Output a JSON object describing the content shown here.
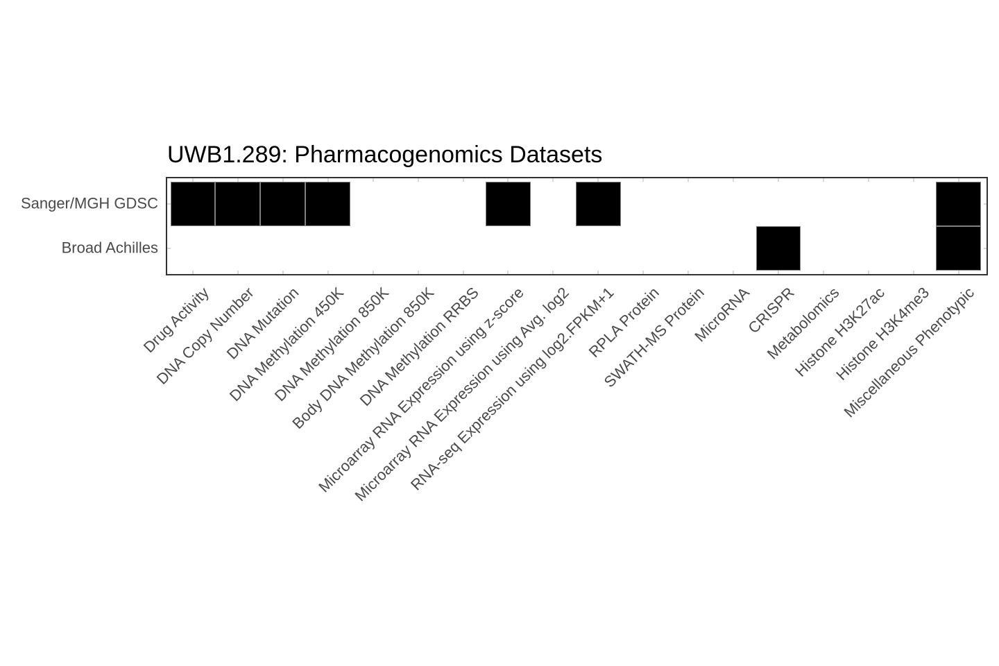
{
  "title": "UWB1.289: Pharmacogenomics Datasets",
  "chart_data": {
    "type": "heatmap",
    "title": "UWB1.289: Pharmacogenomics Datasets",
    "rows": [
      "Sanger/MGH GDSC",
      "Broad Achilles"
    ],
    "columns": [
      "Drug Activity",
      "DNA Copy Number",
      "DNA Mutation",
      "DNA Methylation 450K",
      "DNA Methylation 850K",
      "Body DNA Methylation 850K",
      "DNA Methylation RRBS",
      "Microarray RNA Expression using z-score",
      "Microarray RNA Expression using Avg. log2",
      "RNA-seq Expression using log2.FPKM+1",
      "RPLA Protein",
      "SWATH-MS Protein",
      "MicroRNA",
      "CRISPR",
      "Metabolomics",
      "Histone H3K27ac",
      "Histone H3K4me3",
      "Miscellaneous Phenotypic"
    ],
    "series": [
      {
        "name": "Sanger/MGH GDSC",
        "values": [
          1,
          1,
          1,
          1,
          0,
          0,
          0,
          1,
          0,
          1,
          0,
          0,
          0,
          0,
          0,
          0,
          0,
          1
        ]
      },
      {
        "name": "Broad Achilles",
        "values": [
          0,
          0,
          0,
          0,
          0,
          0,
          0,
          0,
          0,
          0,
          0,
          0,
          0,
          1,
          0,
          0,
          0,
          1
        ]
      }
    ],
    "value_meaning": {
      "1": "dataset available",
      "0": "dataset not available"
    },
    "legend": "none",
    "grid": "edge ticks at category centers"
  },
  "colors": {
    "background": "#ffffff",
    "present_cell": "#000000",
    "absent_cell": "#ffffff",
    "cell_border": "#808080",
    "panel_border": "#333333",
    "grid_tick": "#d9d9d9",
    "axis_text": "#4a4a4a",
    "title_text": "#000000"
  }
}
